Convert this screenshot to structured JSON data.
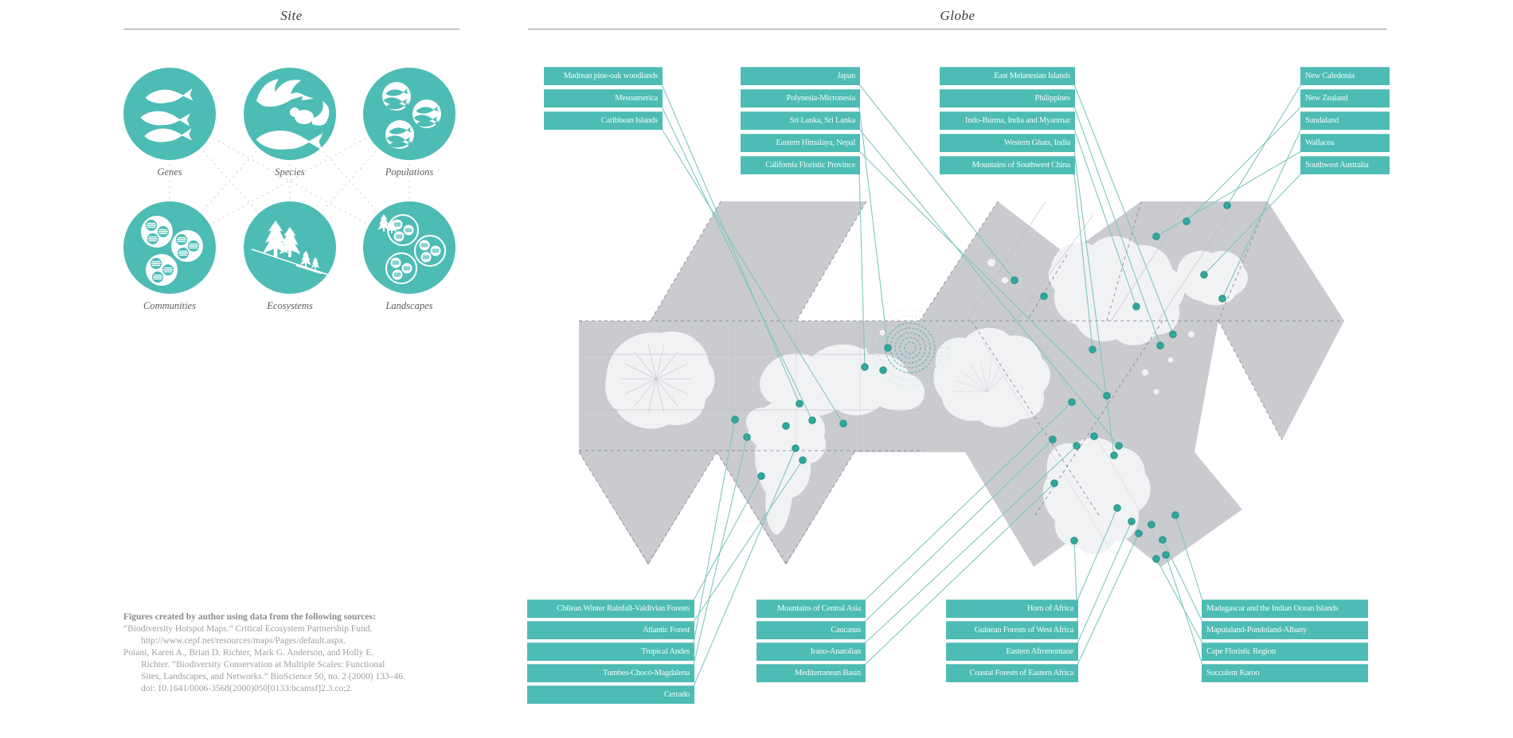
{
  "site": {
    "title": "Site",
    "icons": [
      {
        "label": "Genes",
        "icon": "genes-icon"
      },
      {
        "label": "Species",
        "icon": "species-icon"
      },
      {
        "label": "Populations",
        "icon": "populations-icon"
      },
      {
        "label": "Communities",
        "icon": "communities-icon"
      },
      {
        "label": "Ecosystems",
        "icon": "ecosystems-icon"
      },
      {
        "label": "Landscapes",
        "icon": "landscapes-icon"
      }
    ]
  },
  "globe": {
    "title": "Globe",
    "groups": [
      {
        "id": "tl1",
        "labels": [
          "Madrean pine-oak woodlands",
          "Mesoamerica",
          "Caribbean Islands"
        ]
      },
      {
        "id": "tl2",
        "labels": [
          "Japan",
          "Polynesia-Micronesia",
          "Sri Lanka, Sri Lanka",
          "Eastern Himalaya, Nepal",
          "California Floristic Province"
        ]
      },
      {
        "id": "tr1",
        "labels": [
          "East Melanesian Islands",
          "Philippines",
          "Indo-Burma, India and Myanmar",
          "Western Ghats, India",
          "Mountains of Southwest China"
        ]
      },
      {
        "id": "tr2",
        "labels": [
          "New Caledonia",
          "New Zealand",
          "Sundaland",
          "Wallacea",
          "Southwest Australia"
        ]
      },
      {
        "id": "bl1",
        "labels": [
          "Chilean Winter Rainfall-Valdivian Forests",
          "Atlantic Forest",
          "Tropical Andes",
          "Tumbes-Chocó-Magdalena",
          "Cerrado"
        ]
      },
      {
        "id": "bl2",
        "labels": [
          "Mountains of Central Asia",
          "Caucasus",
          "Irano-Anatolian",
          "Mediterranean Basin"
        ]
      },
      {
        "id": "br1",
        "labels": [
          "Horn of Africa",
          "Guinean Forests of West Africa",
          "Eastern Afromontane",
          "Coastal Forests of Eastern Africa"
        ]
      },
      {
        "id": "br2",
        "labels": [
          "Madagascar and the Indian Ocean Islands",
          "Maputaland-Pondoland-Albany",
          "Cape Floristic Region",
          "Succulent Karoo"
        ]
      }
    ]
  },
  "sources": {
    "heading": "Figures created by author using data from the following sources:",
    "lines": [
      {
        "text": "“Biodiversity Hotspot Maps.” Critical Ecosystem Partnership Fund.",
        "indent": false
      },
      {
        "text": "http://www.cepf.net/resources/maps/Pages/default.aspx.",
        "indent": true
      },
      {
        "text": "Poiani, Karen A., Brian D. Richter, Mark G. Anderson, and Holly E.",
        "indent": false
      },
      {
        "text": "Richter. “Biodiversity Conservation at Multiple Scales: Functional",
        "indent": true
      },
      {
        "text": "Sites, Landscapes, and Networks.” BioScience 50, no. 2 (2000) 133–46.",
        "indent": true
      },
      {
        "text": "doi: 10.1641/0006-3568(2000)050[0133:bcamsf]2.3.co;2.",
        "indent": true
      }
    ]
  },
  "colors": {
    "teal": "#4CBCB4",
    "dot_teal": "#2FA89D",
    "line_teal": "#7FC6BF",
    "map_gray": "#C9CBCF",
    "land_gray": "#F2F2F4"
  }
}
